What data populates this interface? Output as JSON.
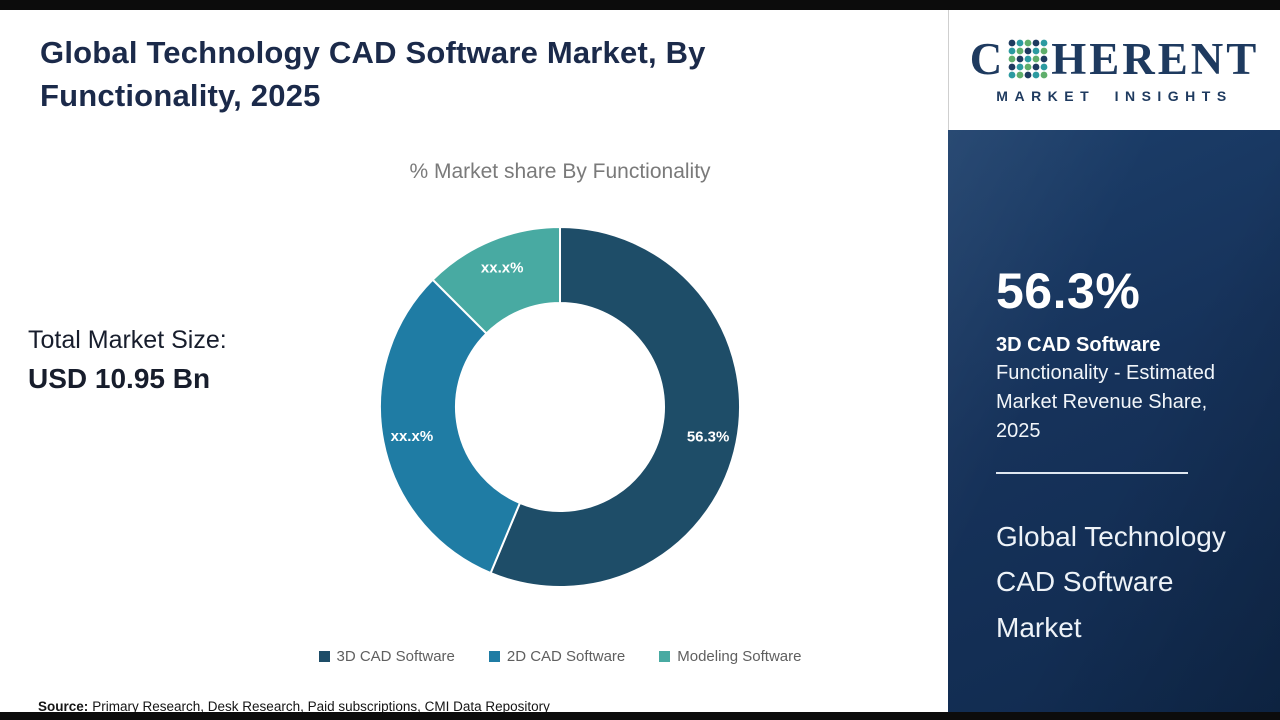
{
  "header": {
    "title": "Global Technology CAD Software Market, By Functionality, 2025"
  },
  "main": {
    "chart_title": "% Market share By Functionality",
    "total_market_label": "Total Market Size:",
    "total_market_value": "USD 10.95 Bn",
    "source_label": "Source:",
    "source_text": "Primary Research, Desk Research, Paid subscriptions, CMI Data Repository"
  },
  "chart_data": {
    "type": "pie",
    "donut": true,
    "title": "% Market share By Functionality",
    "inner_radius_ratio": 0.58,
    "legend_position": "bottom",
    "segments": [
      {
        "label": "3D CAD Software",
        "value": 56.3,
        "display": "56.3%",
        "color": "#1e4d68"
      },
      {
        "label": "2D CAD Software",
        "value": 31.2,
        "display": "xx.x%",
        "color": "#1f7ca4"
      },
      {
        "label": "Modeling Software",
        "value": 12.5,
        "display": "xx.x%",
        "color": "#48aaa2"
      }
    ]
  },
  "sidebar": {
    "logo": {
      "letter_c": "C",
      "rest": "HERENT",
      "subtext": "MARKET INSIGHTS"
    },
    "stat_value": "56.3%",
    "stat_label": "3D CAD Software",
    "stat_description": "Functionality - Estimated Market Revenue Share, 2025",
    "footer_title": "Global Technology CAD Software Market"
  }
}
